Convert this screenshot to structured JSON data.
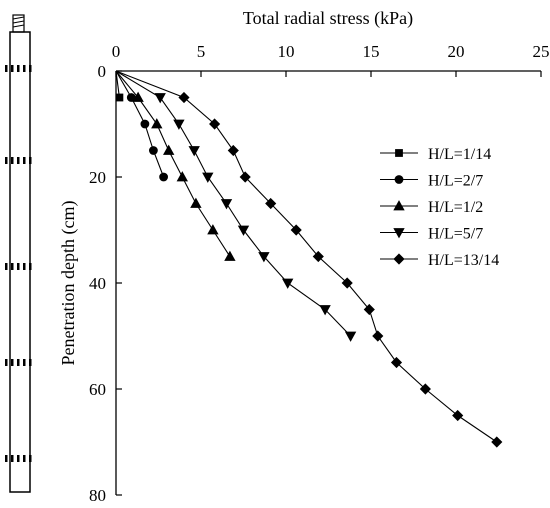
{
  "chart_data": {
    "type": "line",
    "x_axis_position": "top",
    "y_axis_inverted": true,
    "xlabel": "Total radial stress (kPa)",
    "ylabel": "Penetration depth (cm)",
    "xlim": [
      0,
      25
    ],
    "ylim": [
      0,
      80
    ],
    "xticks": [
      "0",
      "5",
      "10",
      "15",
      "20",
      "25"
    ],
    "yticks": [
      "0",
      "20",
      "40",
      "60",
      "80"
    ],
    "grid": false,
    "legend_position": "right",
    "series": [
      {
        "name": "H/L=1/14",
        "marker": "square",
        "points": [
          [
            0,
            0
          ],
          [
            0.2,
            5
          ]
        ]
      },
      {
        "name": "H/L=2/7",
        "marker": "circle",
        "points": [
          [
            0,
            0
          ],
          [
            0.9,
            5
          ],
          [
            1.7,
            10
          ],
          [
            2.2,
            15
          ],
          [
            2.8,
            20
          ]
        ]
      },
      {
        "name": "H/L=1/2",
        "marker": "triangle-up",
        "points": [
          [
            0,
            0
          ],
          [
            1.3,
            5
          ],
          [
            2.4,
            10
          ],
          [
            3.1,
            15
          ],
          [
            3.9,
            20
          ],
          [
            4.7,
            25
          ],
          [
            5.7,
            30
          ],
          [
            6.7,
            35
          ]
        ]
      },
      {
        "name": "H/L=5/7",
        "marker": "triangle-down",
        "points": [
          [
            0,
            0
          ],
          [
            2.6,
            5
          ],
          [
            3.7,
            10
          ],
          [
            4.6,
            15
          ],
          [
            5.4,
            20
          ],
          [
            6.5,
            25
          ],
          [
            7.5,
            30
          ],
          [
            8.7,
            35
          ],
          [
            10.1,
            40
          ],
          [
            12.3,
            45
          ],
          [
            13.8,
            50
          ]
        ]
      },
      {
        "name": "H/L=13/14",
        "marker": "diamond",
        "points": [
          [
            0,
            0
          ],
          [
            4.0,
            5
          ],
          [
            5.8,
            10
          ],
          [
            6.9,
            15
          ],
          [
            7.6,
            20
          ],
          [
            9.1,
            25
          ],
          [
            10.6,
            30
          ],
          [
            11.9,
            35
          ],
          [
            13.6,
            40
          ],
          [
            14.9,
            45
          ],
          [
            15.4,
            50
          ],
          [
            16.5,
            55
          ],
          [
            18.2,
            60
          ],
          [
            20.1,
            65
          ],
          [
            22.4,
            70
          ]
        ]
      }
    ]
  },
  "probe": {
    "label": "penetration probe schematic"
  }
}
